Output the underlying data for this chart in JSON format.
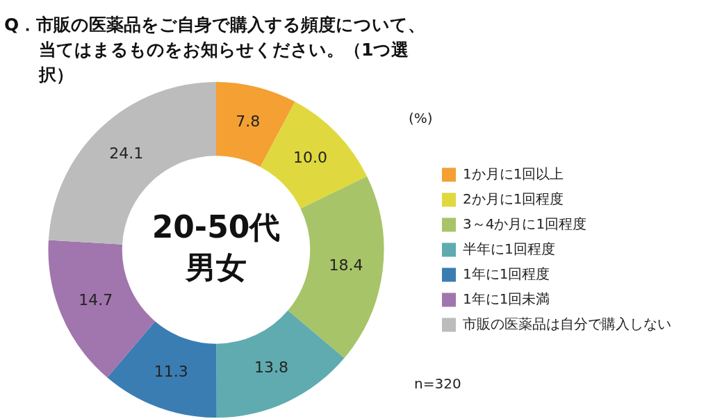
{
  "chart_data": {
    "type": "donut",
    "title": "Q．市販の医薬品をご自身で購入する頻度について、当てはまるものをお知らせください。（1つ選択）",
    "categories": [
      "1か月に1回以上",
      "2か月に1回程度",
      "3～4か月に1回程度",
      "半年に1回程度",
      "1年に1回程度",
      "1年に1回未満",
      "市販の医薬品は自分で購入しない"
    ],
    "values": [
      7.8,
      10.0,
      18.4,
      13.8,
      11.3,
      14.7,
      24.1
    ],
    "colors": [
      "#f4a033",
      "#dfd93f",
      "#a7c468",
      "#5fabb0",
      "#3a7db3",
      "#a175ad",
      "#bcbcbc"
    ],
    "value_labels": [
      "7.8",
      "10.0",
      "18.4",
      "13.8",
      "11.3",
      "14.7",
      "24.1"
    ],
    "legend": "right",
    "annotations": [
      "20-50代男女",
      "(%)",
      "n=320"
    ]
  }
}
